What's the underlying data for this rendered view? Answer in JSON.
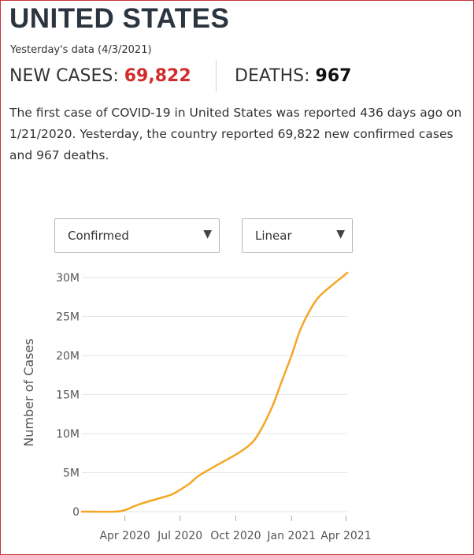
{
  "header": {
    "title": "UNITED STATES",
    "date_label": "Yesterday's data (4/3/2021)"
  },
  "stats": {
    "new_cases_label": "NEW CASES: ",
    "new_cases_value": "69,822",
    "deaths_label": "DEATHS: ",
    "deaths_value": "967"
  },
  "description": "The first case of COVID-19 in United States was reported 436 days ago on 1/21/2020. Yesterday, the country reported 69,822 new confirmed cases and 967 deaths.",
  "controls": {
    "metric_selected": "Confirmed",
    "scale_selected": "Linear"
  },
  "colors": {
    "line": "#f5a623",
    "cases_value": "#d22d2d",
    "border": "#c9343f",
    "grid": "#e6e6e6"
  },
  "chart_data": {
    "type": "line",
    "ylabel": "Number of Cases",
    "xlabel": "",
    "ylim": [
      0,
      30000000
    ],
    "xlim": [
      "2020-01-21",
      "2021-04-03"
    ],
    "y_ticks": [
      {
        "value": 0,
        "label": "0"
      },
      {
        "value": 5000000,
        "label": "5M"
      },
      {
        "value": 10000000,
        "label": "10M"
      },
      {
        "value": 15000000,
        "label": "15M"
      },
      {
        "value": 20000000,
        "label": "20M"
      },
      {
        "value": 25000000,
        "label": "25M"
      },
      {
        "value": 30000000,
        "label": "30M"
      }
    ],
    "x_ticks": [
      {
        "date": "2020-04-01",
        "label": "Apr 2020"
      },
      {
        "date": "2020-07-01",
        "label": "Jul 2020"
      },
      {
        "date": "2020-10-01",
        "label": "Oct 2020"
      },
      {
        "date": "2021-01-01",
        "label": "Jan 2021"
      },
      {
        "date": "2021-04-01",
        "label": "Apr 2021"
      }
    ],
    "grid": true,
    "series": [
      {
        "x": [
          "2020-01-21",
          "2020-03-15",
          "2020-04-01",
          "2020-04-15",
          "2020-05-01",
          "2020-06-01",
          "2020-06-20",
          "2020-07-15",
          "2020-08-01",
          "2020-09-01",
          "2020-10-01",
          "2020-10-20",
          "2020-11-01",
          "2020-11-15",
          "2020-12-01",
          "2020-12-15",
          "2021-01-01",
          "2021-01-15",
          "2021-02-01",
          "2021-02-15",
          "2021-03-01",
          "2021-04-03"
        ],
        "values": [
          0,
          5000,
          200000,
          650000,
          1100000,
          1800000,
          2300000,
          3500000,
          4600000,
          6000000,
          7300000,
          8300000,
          9200000,
          11000000,
          13600000,
          16500000,
          20000000,
          23200000,
          25900000,
          27500000,
          28500000,
          30600000
        ]
      }
    ]
  }
}
